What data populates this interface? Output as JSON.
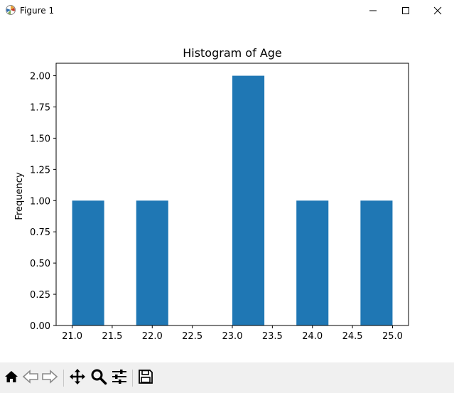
{
  "window": {
    "title": "Figure 1",
    "app_icon": "matplotlib-icon",
    "controls": [
      "minimize-icon",
      "maximize-icon",
      "close-icon"
    ]
  },
  "toolbar": {
    "tools": [
      {
        "name": "home",
        "icon": "home-icon"
      },
      {
        "name": "back",
        "icon": "back-arrow-icon"
      },
      {
        "name": "forward",
        "icon": "forward-arrow-icon"
      },
      {
        "name": "pan",
        "icon": "move-icon"
      },
      {
        "name": "zoom",
        "icon": "zoom-icon"
      },
      {
        "name": "configure-subplots",
        "icon": "sliders-icon"
      },
      {
        "name": "save",
        "icon": "save-icon"
      }
    ]
  },
  "colors": {
    "bar": "#1f77b4",
    "axes": "#000000",
    "toolbar_bg": "#f0f0f0"
  },
  "chart_data": {
    "type": "bar",
    "title": "Histogram of Age",
    "xlabel": "",
    "ylabel": "Frequency",
    "bins": [
      {
        "start": 21.0,
        "end": 21.4,
        "value": 1
      },
      {
        "start": 21.4,
        "end": 21.8,
        "value": 0
      },
      {
        "start": 21.8,
        "end": 22.2,
        "value": 1
      },
      {
        "start": 22.2,
        "end": 22.6,
        "value": 0
      },
      {
        "start": 22.6,
        "end": 23.0,
        "value": 0
      },
      {
        "start": 23.0,
        "end": 23.4,
        "value": 2
      },
      {
        "start": 23.4,
        "end": 23.8,
        "value": 0
      },
      {
        "start": 23.8,
        "end": 24.2,
        "value": 1
      },
      {
        "start": 24.2,
        "end": 24.6,
        "value": 0
      },
      {
        "start": 24.6,
        "end": 25.0,
        "value": 1
      }
    ],
    "xlim": [
      20.8,
      25.2
    ],
    "ylim": [
      0,
      2.1
    ],
    "xticks": [
      "21.0",
      "21.5",
      "22.0",
      "22.5",
      "23.0",
      "23.5",
      "24.0",
      "24.5",
      "25.0"
    ],
    "xtick_values": [
      21.0,
      21.5,
      22.0,
      22.5,
      23.0,
      23.5,
      24.0,
      24.5,
      25.0
    ],
    "yticks": [
      "0.00",
      "0.25",
      "0.50",
      "0.75",
      "1.00",
      "1.25",
      "1.50",
      "1.75",
      "2.00"
    ],
    "ytick_values": [
      0,
      0.25,
      0.5,
      0.75,
      1.0,
      1.25,
      1.5,
      1.75,
      2.0
    ],
    "grid": false,
    "legend": "none"
  }
}
